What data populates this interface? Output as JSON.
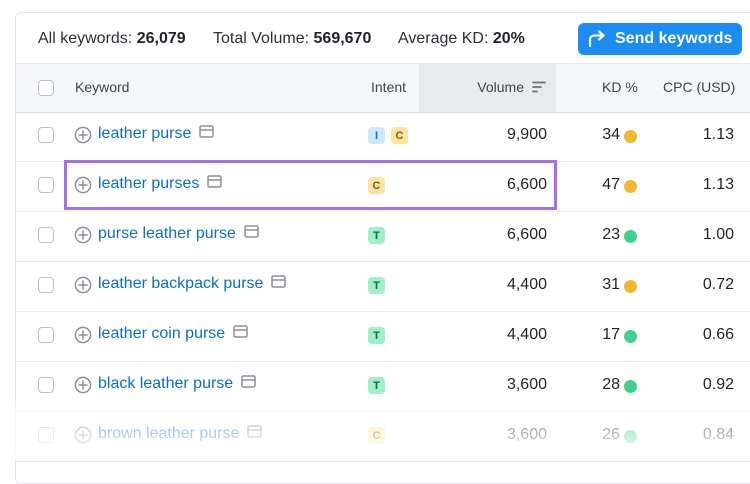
{
  "summary": {
    "all_keywords_label": "All keywords:",
    "all_keywords_value": "26,079",
    "total_volume_label": "Total Volume:",
    "total_volume_value": "569,670",
    "avg_kd_label": "Average KD:",
    "avg_kd_value": "20%",
    "send_button_label": "Send keywords"
  },
  "table": {
    "headers": {
      "keyword": "Keyword",
      "intent": "Intent",
      "volume": "Volume",
      "kd": "KD %",
      "cpc": "CPC (USD)"
    },
    "rows": [
      {
        "keyword": "leather purse",
        "intents": [
          "I",
          "C"
        ],
        "volume": "9,900",
        "kd": "34",
        "kd_color": "#f2b630",
        "cpc": "1.13"
      },
      {
        "keyword": "leather purses",
        "intents": [
          "C"
        ],
        "volume": "6,600",
        "kd": "47",
        "kd_color": "#f2b630",
        "cpc": "1.13"
      },
      {
        "keyword": "purse leather purse",
        "intents": [
          "T"
        ],
        "volume": "6,600",
        "kd": "23",
        "kd_color": "#3fcf8e",
        "cpc": "1.00"
      },
      {
        "keyword": "leather backpack purse",
        "intents": [
          "T"
        ],
        "volume": "4,400",
        "kd": "31",
        "kd_color": "#f2b630",
        "cpc": "0.72"
      },
      {
        "keyword": "leather coin purse",
        "intents": [
          "T"
        ],
        "volume": "4,400",
        "kd": "17",
        "kd_color": "#3fcf8e",
        "cpc": "0.66"
      },
      {
        "keyword": "black leather purse",
        "intents": [
          "T"
        ],
        "volume": "3,600",
        "kd": "28",
        "kd_color": "#3fcf8e",
        "cpc": "0.92"
      },
      {
        "keyword": "brown leather purse",
        "intents": [
          "C"
        ],
        "volume": "3,600",
        "kd": "26",
        "kd_color": "#3fcf8e",
        "cpc": "0.84"
      }
    ]
  },
  "intent_colors": {
    "I": {
      "bg": "#cde8fb",
      "fg": "#1b6ea8"
    },
    "C": {
      "bg": "#fde3a3",
      "fg": "#8a5a00"
    },
    "T": {
      "bg": "#9ff0c8",
      "fg": "#0e6b43"
    }
  },
  "colors": {
    "accent": "#1b8cf0",
    "highlight": "#a36ef0",
    "link": "#0a6ecd"
  },
  "icons": {
    "row_add": "plus-circle-icon",
    "serp": "serp-features-icon",
    "send": "share-arrow-icon",
    "sort": "sort-icon"
  }
}
